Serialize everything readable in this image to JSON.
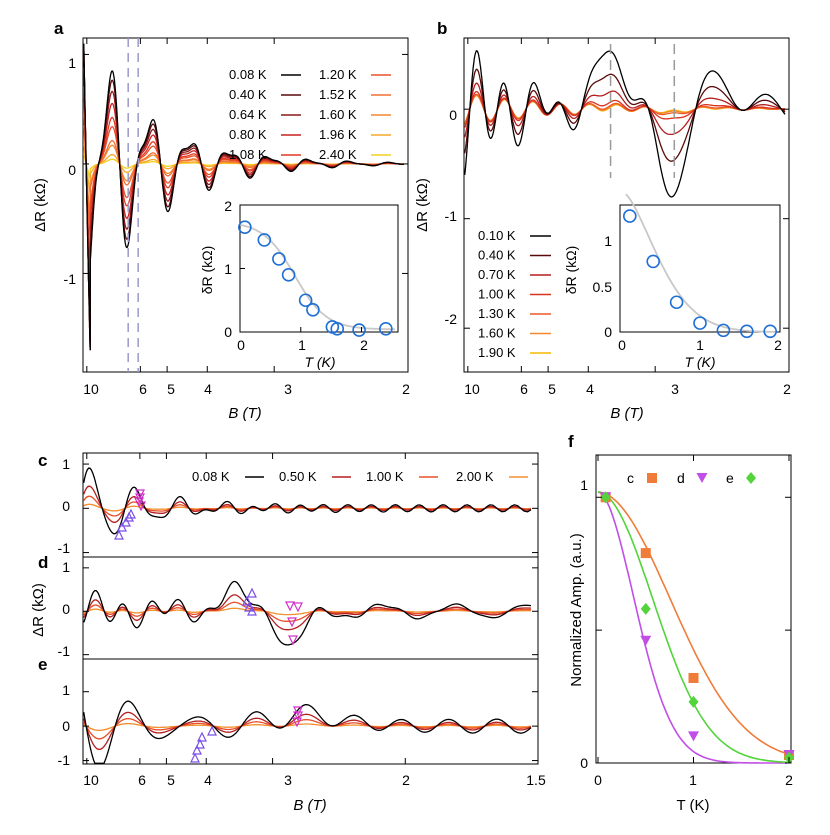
{
  "colors": {
    "t008": "#000000",
    "t010": "#000000",
    "t040": "#5a0a0a",
    "t050": "#b52020",
    "t064": "#8c1a1a",
    "t070": "#b51f1f",
    "t080": "#c82222",
    "t100": "#d9331f",
    "t108": "#e03a22",
    "t120": "#e8502a",
    "t130": "#ec5a28",
    "t152": "#f07030",
    "t160": "#f3892e",
    "t190": "#f5b800",
    "t196": "#f7a82a",
    "t200": "#f29030",
    "t240": "#f2d21e",
    "fit_c": "#f07c3a",
    "fit_d": "#c14ee6",
    "fit_e": "#52d43a",
    "inset_fit": "#c8c8c8",
    "inset_marker": "#1f6fd6",
    "marker_up": "#7a4fe6",
    "marker_down": "#d030c8",
    "dash": "#9a9aca"
  },
  "panels": {
    "a": {
      "letter": "a",
      "ylabel": "ΔR (kΩ)",
      "xlabel": "B (T)",
      "y_ticks": [
        "1",
        "0",
        "-1"
      ],
      "x_ticks": [
        "10",
        "6",
        "5",
        "4",
        "3",
        "2"
      ],
      "legend": [
        {
          "label": "0.08 K",
          "color": "#000000"
        },
        {
          "label": "1.20 K",
          "color": "#e8502a"
        },
        {
          "label": "0.40 K",
          "color": "#5a0a0a"
        },
        {
          "label": "1.52 K",
          "color": "#f07030"
        },
        {
          "label": "0.64 K",
          "color": "#8c1a1a"
        },
        {
          "label": "1.60 K",
          "color": "#f3892e"
        },
        {
          "label": "0.80 K",
          "color": "#c82222"
        },
        {
          "label": "1.96 K",
          "color": "#f7a82a"
        },
        {
          "label": "1.08 K",
          "color": "#e03a22"
        },
        {
          "label": "2.40 K",
          "color": "#f2d21e"
        }
      ],
      "inset": {
        "ylabel": "δR (kΩ)",
        "xlabel": "T (K)",
        "y_ticks": [
          "2",
          "1",
          "0"
        ],
        "x_ticks": [
          "0",
          "1",
          "2"
        ]
      }
    },
    "b": {
      "letter": "b",
      "ylabel": "ΔR (kΩ)",
      "xlabel": "B (T)",
      "y_ticks": [
        "0",
        "-1",
        "-2"
      ],
      "x_ticks": [
        "10",
        "6",
        "5",
        "4",
        "3",
        "2"
      ],
      "legend": [
        {
          "label": "0.10 K",
          "color": "#000000"
        },
        {
          "label": "0.40 K",
          "color": "#5a0a0a"
        },
        {
          "label": "0.70 K",
          "color": "#b51f1f"
        },
        {
          "label": "1.00 K",
          "color": "#d9331f"
        },
        {
          "label": "1.30 K",
          "color": "#ec5a28"
        },
        {
          "label": "1.60 K",
          "color": "#f3892e"
        },
        {
          "label": "1.90 K",
          "color": "#f5b800"
        }
      ],
      "inset": {
        "ylabel": "δR (kΩ)",
        "xlabel": "T (K)",
        "y_ticks": [
          "1",
          "0.5",
          "0"
        ],
        "x_ticks": [
          "0",
          "1",
          "2"
        ]
      }
    },
    "cde": {
      "letters": [
        "c",
        "d",
        "e"
      ],
      "ylabel": "ΔR (kΩ)",
      "xlabel": "B (T)",
      "x_ticks": [
        "10",
        "6",
        "5",
        "4",
        "3",
        "2",
        "1.5"
      ],
      "c_y_ticks": [
        "1",
        "0",
        "-1"
      ],
      "d_y_ticks": [
        "1",
        "0",
        "-1"
      ],
      "e_y_ticks": [
        "1",
        "0",
        "-1"
      ],
      "legend": [
        {
          "label": "0.08 K",
          "color": "#000000"
        },
        {
          "label": "0.50 K",
          "color": "#b52020"
        },
        {
          "label": "1.00 K",
          "color": "#e8502a"
        },
        {
          "label": "2.00 K",
          "color": "#f29030"
        }
      ]
    },
    "f": {
      "letter": "f",
      "ylabel": "Normalized Amp. (a.u.)",
      "xlabel": "T (K)",
      "y_ticks": [
        "1",
        "0"
      ],
      "x_ticks": [
        "0",
        "1",
        "2"
      ],
      "legend": [
        {
          "label": "c",
          "color": "#f07c3a",
          "marker": "square"
        },
        {
          "label": "d",
          "color": "#c14ee6",
          "marker": "triangle-down"
        },
        {
          "label": "e",
          "color": "#52d43a",
          "marker": "diamond"
        }
      ]
    }
  },
  "chart_data": [
    {
      "type": "line",
      "panel": "a",
      "xlabel": "B (T)",
      "ylabel": "ΔR (kΩ)",
      "x_axis": "1/B",
      "xlim": [
        10.5,
        2
      ],
      "ylim": [
        -1.9,
        1.15
      ],
      "series": [
        {
          "name": "0.08 K",
          "amplitude": 1.0
        },
        {
          "name": "0.40 K",
          "amplitude": 0.9
        },
        {
          "name": "0.64 K",
          "amplitude": 0.78
        },
        {
          "name": "0.80 K",
          "amplitude": 0.65
        },
        {
          "name": "1.08 K",
          "amplitude": 0.5
        },
        {
          "name": "1.20 K",
          "amplitude": 0.4
        },
        {
          "name": "1.52 K",
          "amplitude": 0.25
        },
        {
          "name": "1.60 K",
          "amplitude": 0.2
        },
        {
          "name": "1.96 K",
          "amplitude": 0.1
        },
        {
          "name": "2.40 K",
          "amplitude": 0.05
        }
      ],
      "dashed_lines_B": [
        6.6,
        6.1
      ]
    },
    {
      "type": "scatter",
      "panel": "a-inset",
      "xlabel": "T (K)",
      "ylabel": "δR (kΩ)",
      "xlim": [
        0,
        2.6
      ],
      "ylim": [
        0,
        2
      ],
      "x": [
        0.08,
        0.4,
        0.64,
        0.8,
        1.08,
        1.2,
        1.52,
        1.6,
        1.96,
        2.4
      ],
      "y": [
        1.65,
        1.45,
        1.15,
        0.9,
        0.5,
        0.35,
        0.08,
        0.05,
        0.03,
        0.05
      ]
    },
    {
      "type": "line",
      "panel": "b",
      "xlabel": "B (T)",
      "ylabel": "ΔR (kΩ)",
      "x_axis": "1/B",
      "xlim": [
        10.5,
        2
      ],
      "ylim": [
        -2.4,
        0.65
      ],
      "series": [
        {
          "name": "0.10 K",
          "amplitude": 1.0
        },
        {
          "name": "0.40 K",
          "amplitude": 0.6
        },
        {
          "name": "0.70 K",
          "amplitude": 0.3
        },
        {
          "name": "1.00 K",
          "amplitude": 0.12
        },
        {
          "name": "1.30 K",
          "amplitude": 0.06
        },
        {
          "name": "1.60 K",
          "amplitude": 0.04
        },
        {
          "name": "1.90 K",
          "amplitude": 0.03
        }
      ],
      "dashed_lines_B": [
        3.6,
        2.8
      ]
    },
    {
      "type": "scatter",
      "panel": "b-inset",
      "xlabel": "T (K)",
      "ylabel": "δR (kΩ)",
      "xlim": [
        0,
        2
      ],
      "ylim": [
        0,
        1.4
      ],
      "x": [
        0.1,
        0.4,
        0.7,
        1.0,
        1.3,
        1.6,
        1.9
      ],
      "y": [
        1.3,
        0.8,
        0.35,
        0.12,
        0.04,
        0.03,
        0.03
      ]
    },
    {
      "type": "line",
      "panel": "c",
      "x_axis": "1/B",
      "xlim": [
        10.5,
        1.5
      ],
      "ylim": [
        -1.1,
        1.2
      ],
      "series": [
        {
          "name": "0.08 K",
          "amplitude": 1.0
        },
        {
          "name": "0.50 K",
          "amplitude": 0.55
        },
        {
          "name": "1.00 K",
          "amplitude": 0.3
        },
        {
          "name": "2.00 K",
          "amplitude": 0.1
        }
      ]
    },
    {
      "type": "line",
      "panel": "d",
      "x_axis": "1/B",
      "xlim": [
        10.5,
        1.5
      ],
      "ylim": [
        -1.1,
        1.2
      ],
      "series": [
        {
          "name": "0.08 K",
          "amplitude": 1.0
        },
        {
          "name": "0.50 K",
          "amplitude": 0.55
        },
        {
          "name": "1.00 K",
          "amplitude": 0.3
        },
        {
          "name": "2.00 K",
          "amplitude": 0.1
        }
      ]
    },
    {
      "type": "line",
      "panel": "e",
      "x_axis": "1/B",
      "xlim": [
        10.5,
        1.5
      ],
      "ylim": [
        -1.1,
        1.9
      ],
      "series": [
        {
          "name": "0.08 K",
          "amplitude": 1.0
        },
        {
          "name": "0.50 K",
          "amplitude": 0.55
        },
        {
          "name": "1.00 K",
          "amplitude": 0.3
        },
        {
          "name": "2.00 K",
          "amplitude": 0.1
        }
      ]
    },
    {
      "type": "scatter",
      "panel": "f",
      "xlabel": "T (K)",
      "ylabel": "Normalized Amp. (a.u.)",
      "xlim": [
        0,
        2
      ],
      "ylim": [
        0,
        1.05
      ],
      "series": [
        {
          "name": "c",
          "x": [
            0.08,
            0.5,
            1.0,
            2.0
          ],
          "y": [
            1.0,
            0.79,
            0.32,
            0.03
          ]
        },
        {
          "name": "d",
          "x": [
            0.08,
            0.5,
            1.0,
            2.0
          ],
          "y": [
            1.0,
            0.46,
            0.1,
            0.03
          ]
        },
        {
          "name": "e",
          "x": [
            0.08,
            0.5,
            1.0,
            2.0
          ],
          "y": [
            1.0,
            0.58,
            0.23,
            0.02
          ]
        }
      ]
    }
  ]
}
